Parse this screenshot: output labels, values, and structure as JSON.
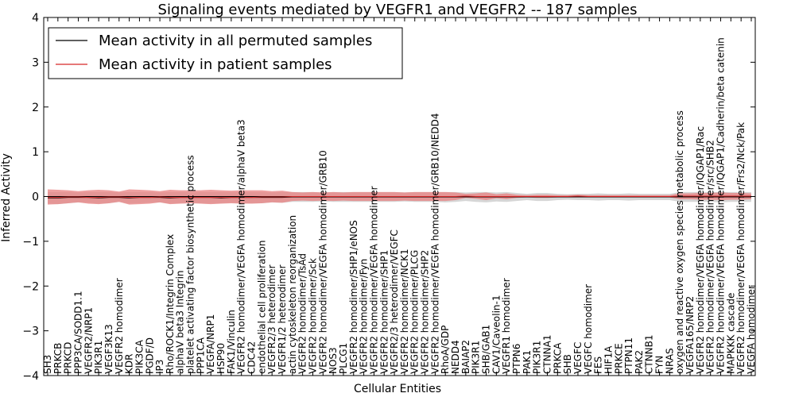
{
  "chart_data": {
    "type": "line",
    "title": "Signaling events mediated by VEGFR1 and VEGFR2 -- 187 samples",
    "xlabel": "Cellular Entities",
    "ylabel": "Inferred Activity",
    "ylim": [
      -4,
      4
    ],
    "yticks": [
      -4,
      -3,
      -2,
      -1,
      0,
      1,
      2,
      3,
      4
    ],
    "ytick_labels": [
      "−4",
      "−3",
      "−2",
      "−1",
      "0",
      "1",
      "2",
      "3",
      "4"
    ],
    "grid": false,
    "legend_position": "top-left",
    "colors": {
      "permuted": "#000000",
      "patient": "#d62728",
      "patient_band": "#e88080",
      "permuted_band": "#cccccc"
    },
    "categories": [
      "SH3",
      "PRKCB",
      "PRKCD",
      "PPP3CA/SODD1.1",
      "VEGFR2/NRP1",
      "PIK3R1",
      "VEGF3K13",
      "VEGFR2 homodimer",
      "KDR",
      "PIK3CA",
      "PGDF/D",
      "IP3",
      "Rho/ROCK1/Integrin Complex",
      "alphaV beta3 Integrin",
      "platelet activating factor biosynthetic process",
      "PPP1CA",
      "VEGFA/NRP1",
      "HSP90",
      "FAK1/Vinculin",
      "VEGFR2 homodimer/VEGFA homodimer/alphaV beta3",
      "CDC42",
      "endothelial cell proliferation",
      "VEGFR2/3 heterodimer",
      "VEGFR1/2 heterodimer",
      "actin cytoskeleton reorganization",
      "VEGFR2 homodimer/TsAd",
      "VEGFR2 homodimer/Sck",
      "VEGFR2 homodimer/VEGFA homodimer/GRB10",
      "NOS3",
      "PLCG1",
      "VEGFR2 homodimer/SHP1/eNOS",
      "VEGFR2 homodimer/Fyn",
      "VEGFR2 homodimer/VEGFA homodimer",
      "VEGFR2 homodimer/SHP1",
      "VEGFR2/3 heterodimer/VEGFC",
      "VEGFR2 homodimer/NCK1",
      "VEGFR2 homodimer/PLCG",
      "VEGFR2 homodimer/SHP2",
      "VEGFR2 homodimer/VEGFA homodimer/GRB10/NEDD4",
      "RhoA/GDP",
      "NEDD4",
      "BAIAP2",
      "PIK3R1",
      "SHB/GAB1",
      "CAV1/Caveolin-1",
      "VEGFR1 homodimer",
      "PTPN6",
      "PAK1",
      "PIK3R1",
      "CTNNA1",
      "PRKCA",
      "SHB",
      "VEGFC",
      "VEGFC homodimer",
      "FES",
      "HIF1A",
      "PRKCE",
      "PTPN11",
      "PAK2",
      "CTNNB1",
      "FYN",
      "NRAS",
      "oxygen and reactive oxygen species metabolic process",
      "VEGFA165/NRP2",
      "VEGFR2 homodimer/VEGFA homodimer/IQGAP1/Rac",
      "VEGFR2 homodimer/VEGFA homodimer/src/SHB2",
      "VEGFR2 homodimer/VEGFA homodimer/IQGAP1/Cadherin/beta catenin",
      "MAPKKK cascade",
      "VEGFR2 homodimer/VEGFA homodimer/Frs2/Nck/Pak",
      "VEGFA homodimer"
    ],
    "series": [
      {
        "name": "Mean activity in all permuted samples",
        "values": [
          -0.03,
          -0.03,
          -0.02,
          -0.02,
          -0.02,
          -0.03,
          -0.02,
          -0.02,
          -0.03,
          -0.02,
          -0.02,
          -0.02,
          -0.03,
          -0.02,
          -0.02,
          -0.02,
          -0.02,
          -0.03,
          -0.02,
          -0.02,
          -0.02,
          -0.02,
          -0.02,
          -0.02,
          -0.01,
          -0.01,
          -0.01,
          -0.01,
          -0.01,
          -0.01,
          -0.01,
          -0.01,
          -0.01,
          -0.01,
          -0.01,
          -0.01,
          -0.01,
          -0.01,
          -0.01,
          -0.01,
          -0.01,
          -0.01,
          -0.01,
          -0.01,
          -0.01,
          -0.01,
          -0.01,
          -0.01,
          -0.01,
          -0.01,
          -0.01,
          -0.01,
          -0.01,
          -0.01,
          -0.01,
          -0.01,
          -0.01,
          -0.01,
          -0.01,
          -0.01,
          -0.01,
          -0.01,
          -0.01,
          -0.01,
          -0.01,
          -0.01,
          -0.01,
          -0.01,
          -0.01,
          -0.01
        ],
        "lower": [
          -0.16,
          -0.17,
          -0.15,
          -0.13,
          -0.14,
          -0.16,
          -0.15,
          -0.12,
          -0.16,
          -0.15,
          -0.14,
          -0.13,
          -0.16,
          -0.15,
          -0.14,
          -0.15,
          -0.16,
          -0.15,
          -0.14,
          -0.15,
          -0.15,
          -0.15,
          -0.13,
          -0.14,
          -0.12,
          -0.12,
          -0.12,
          -0.11,
          -0.12,
          -0.12,
          -0.12,
          -0.12,
          -0.12,
          -0.12,
          -0.12,
          -0.11,
          -0.12,
          -0.12,
          -0.12,
          -0.13,
          -0.12,
          -0.1,
          -0.12,
          -0.13,
          -0.11,
          -0.12,
          -0.1,
          -0.08,
          -0.1,
          -0.1,
          -0.08,
          -0.07,
          -0.08,
          -0.08,
          -0.09,
          -0.08,
          -0.08,
          -0.09,
          -0.08,
          -0.08,
          -0.08,
          -0.08,
          -0.12,
          -0.12,
          -0.12,
          -0.12,
          -0.13,
          -0.12,
          -0.12,
          -0.12
        ],
        "upper": [
          0.1,
          0.1,
          0.1,
          0.09,
          0.1,
          0.1,
          0.1,
          0.09,
          0.1,
          0.1,
          0.1,
          0.09,
          0.1,
          0.1,
          0.1,
          0.1,
          0.1,
          0.1,
          0.1,
          0.1,
          0.1,
          0.1,
          0.09,
          0.1,
          0.1,
          0.1,
          0.1,
          0.09,
          0.1,
          0.1,
          0.1,
          0.1,
          0.1,
          0.1,
          0.1,
          0.09,
          0.1,
          0.1,
          0.1,
          0.1,
          0.1,
          0.09,
          0.1,
          0.1,
          0.09,
          0.1,
          0.08,
          0.06,
          0.08,
          0.08,
          0.06,
          0.05,
          0.06,
          0.06,
          0.07,
          0.06,
          0.06,
          0.07,
          0.06,
          0.06,
          0.06,
          0.06,
          0.1,
          0.1,
          0.1,
          0.1,
          0.1,
          0.1,
          0.1,
          0.1
        ]
      },
      {
        "name": "Mean activity in patient samples",
        "values": [
          -0.02,
          -0.02,
          -0.01,
          -0.01,
          -0.02,
          -0.02,
          -0.01,
          -0.01,
          -0.02,
          -0.02,
          -0.02,
          -0.01,
          -0.02,
          -0.02,
          -0.02,
          -0.02,
          -0.02,
          -0.02,
          -0.02,
          -0.02,
          -0.02,
          -0.01,
          -0.01,
          -0.01,
          0.0,
          0.0,
          0.0,
          0.0,
          0.0,
          0.0,
          0.0,
          0.0,
          0.0,
          0.0,
          0.0,
          0.0,
          0.0,
          0.0,
          0.0,
          0.0,
          0.0,
          0.01,
          0.0,
          0.0,
          0.0,
          0.0,
          0.0,
          0.0,
          0.0,
          0.0,
          0.0,
          0.0,
          0.01,
          0.0,
          0.0,
          0.0,
          0.0,
          0.0,
          0.0,
          0.0,
          0.0,
          0.0,
          0.01,
          0.01,
          0.01,
          0.01,
          0.01,
          0.01,
          0.01,
          0.01
        ],
        "lower": [
          -0.18,
          -0.17,
          -0.15,
          -0.13,
          -0.16,
          -0.17,
          -0.15,
          -0.12,
          -0.18,
          -0.17,
          -0.16,
          -0.13,
          -0.17,
          -0.16,
          -0.15,
          -0.16,
          -0.17,
          -0.16,
          -0.15,
          -0.16,
          -0.16,
          -0.15,
          -0.13,
          -0.14,
          -0.1,
          -0.09,
          -0.1,
          -0.09,
          -0.1,
          -0.09,
          -0.1,
          -0.1,
          -0.1,
          -0.1,
          -0.1,
          -0.09,
          -0.1,
          -0.1,
          -0.1,
          -0.1,
          -0.08,
          -0.03,
          -0.05,
          -0.08,
          -0.04,
          -0.06,
          -0.03,
          -0.02,
          -0.03,
          -0.03,
          -0.02,
          -0.02,
          -0.02,
          -0.02,
          -0.02,
          -0.02,
          -0.02,
          -0.02,
          -0.02,
          -0.02,
          -0.02,
          -0.02,
          -0.06,
          -0.06,
          -0.07,
          -0.07,
          -0.08,
          -0.07,
          -0.07,
          -0.06
        ],
        "upper": [
          0.16,
          0.15,
          0.14,
          0.12,
          0.14,
          0.15,
          0.14,
          0.11,
          0.16,
          0.15,
          0.14,
          0.12,
          0.15,
          0.14,
          0.14,
          0.14,
          0.15,
          0.14,
          0.13,
          0.14,
          0.14,
          0.14,
          0.12,
          0.13,
          0.1,
          0.09,
          0.1,
          0.09,
          0.1,
          0.09,
          0.1,
          0.1,
          0.1,
          0.1,
          0.1,
          0.09,
          0.1,
          0.1,
          0.1,
          0.1,
          0.09,
          0.06,
          0.07,
          0.09,
          0.05,
          0.07,
          0.04,
          0.03,
          0.04,
          0.04,
          0.03,
          0.03,
          0.04,
          0.03,
          0.03,
          0.03,
          0.03,
          0.03,
          0.03,
          0.03,
          0.03,
          0.03,
          0.07,
          0.07,
          0.08,
          0.08,
          0.09,
          0.08,
          0.08,
          0.07
        ]
      }
    ]
  }
}
